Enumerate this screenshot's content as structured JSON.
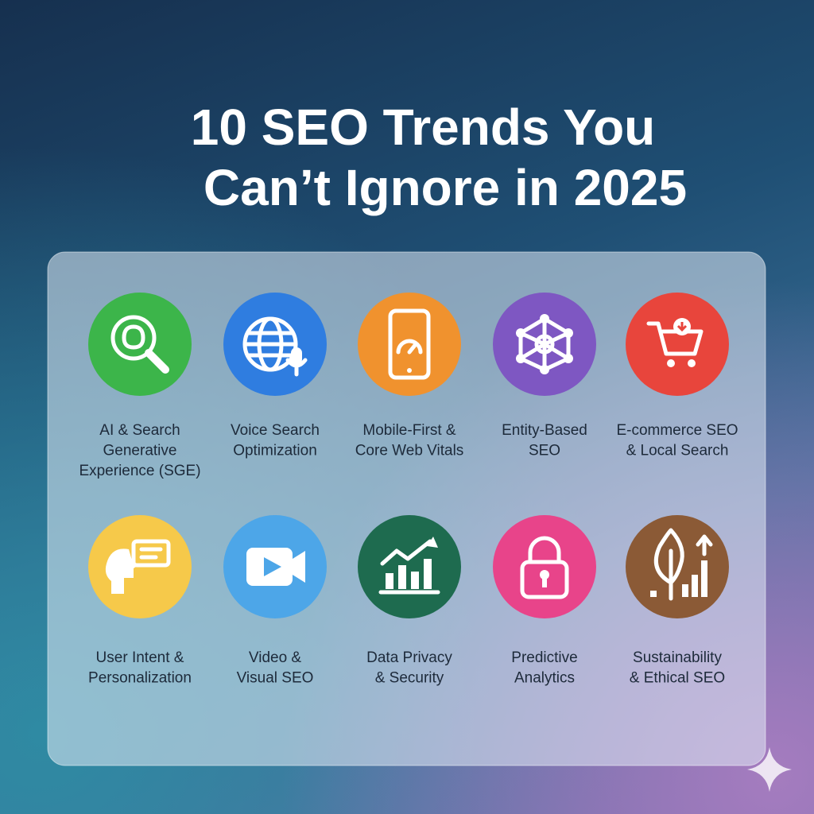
{
  "title": [
    "10 SEO Trends You",
    "Can’t Ignore in 2025"
  ],
  "items": [
    {
      "label": [
        "AI & Search",
        "Generative",
        "Experience (SGE)"
      ]
    },
    {
      "label": [
        "Voice Search",
        "Optimization"
      ]
    },
    {
      "label": [
        "Mobile-First &",
        "Core Web Vitals"
      ]
    },
    {
      "label": [
        "Entity-Based",
        "SEO"
      ]
    },
    {
      "label": [
        "E-commerce SEO",
        "& Local Search"
      ]
    },
    {
      "label": [
        "User Intent &",
        "Personalization"
      ]
    },
    {
      "label": [
        "Video &",
        "Visual SEO"
      ]
    },
    {
      "label": [
        "Data Privacy",
        "& Security"
      ]
    },
    {
      "label": [
        "Predictive",
        "Analytics"
      ]
    },
    {
      "label": [
        "Sustainability",
        "& Ethical SEO"
      ]
    }
  ]
}
